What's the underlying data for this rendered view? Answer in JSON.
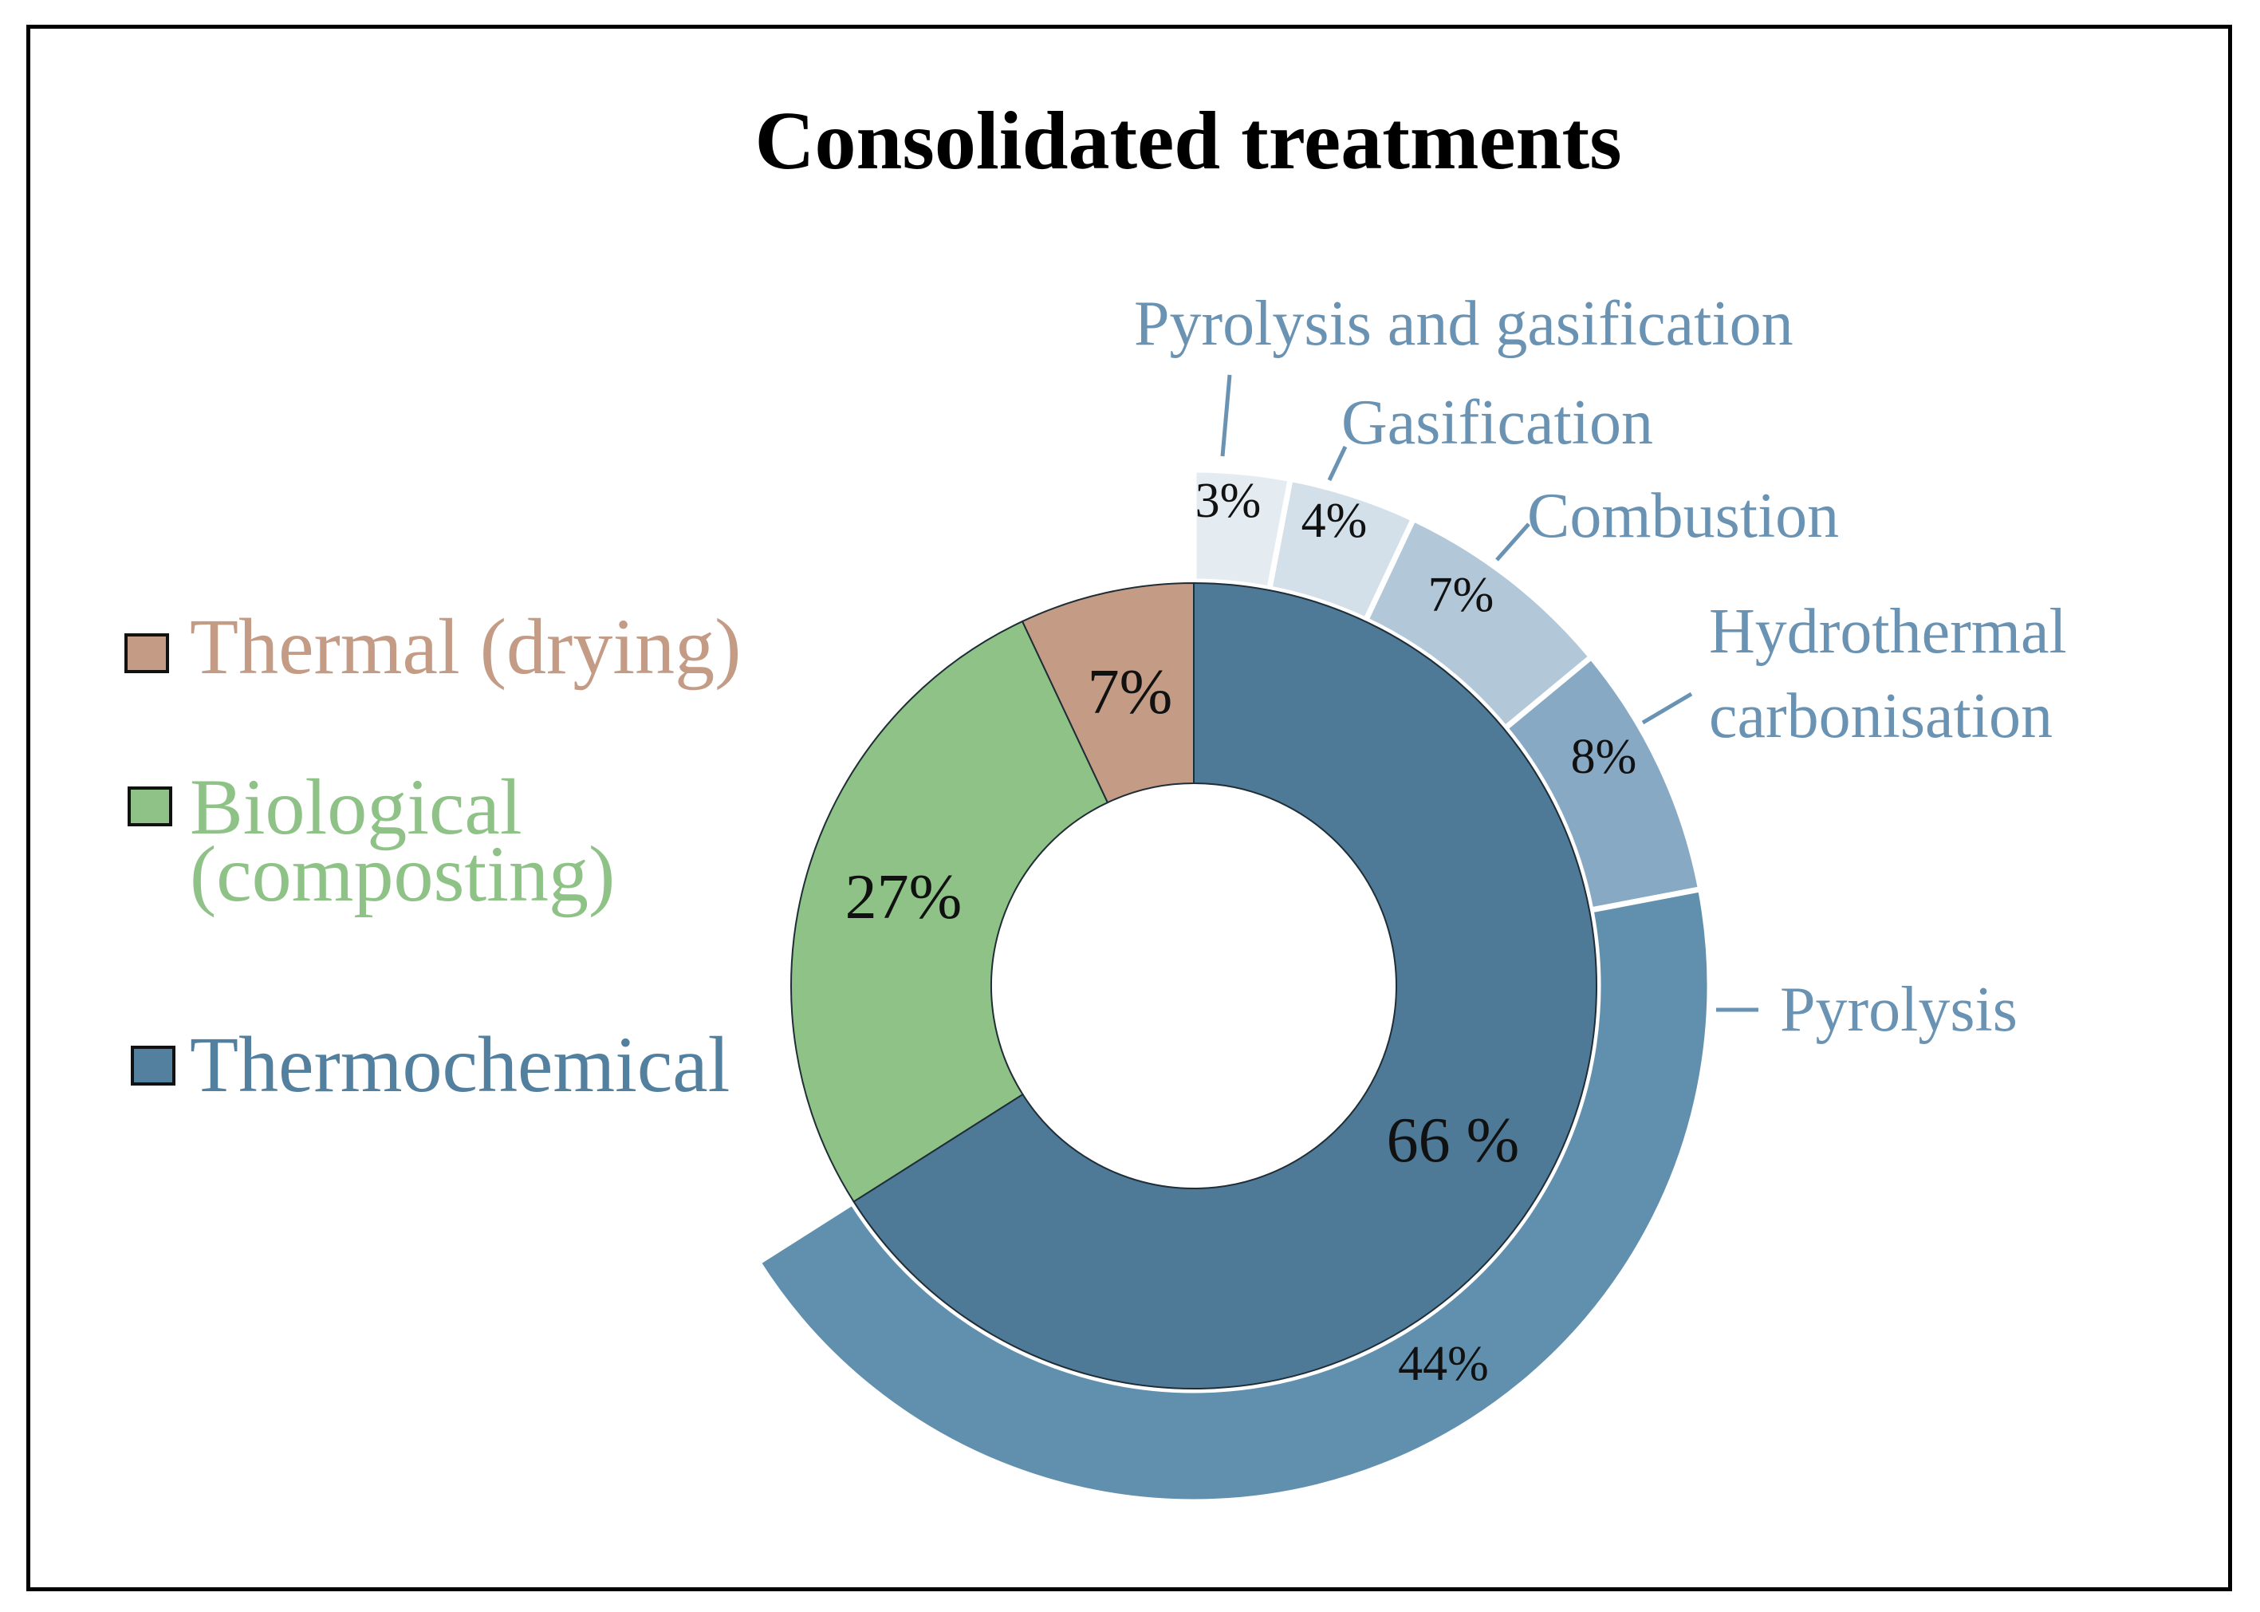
{
  "chart_data": {
    "type": "donut",
    "title": "Consolidated treatments",
    "colors": {
      "thermal": "#c49c86",
      "biological": "#8fc287",
      "thermochemical": "#4e7a97",
      "legend_thermochemical": "#52809e",
      "pyrolysis": "#6090ae",
      "htc": "#88a9c4",
      "combustion": "#b2c7d8",
      "gasification": "#d3dfe9",
      "pyro_gas": "#e4ecf2"
    },
    "legend": [
      {
        "name": "Thermal (drying)",
        "lines": [
          "Thermal (drying)"
        ],
        "color_key": "thermal",
        "text_color": "#c49c86"
      },
      {
        "name": "Biological (composting)",
        "lines": [
          "Biological",
          "(composting)"
        ],
        "color_key": "biological",
        "text_color": "#8fc287"
      },
      {
        "name": "Thermochemical",
        "lines": [
          "Thermochemical"
        ],
        "color_key": "legend_thermochemical",
        "text_color": "#52809e"
      }
    ],
    "inner_ring": [
      {
        "category": "Thermal (drying)",
        "value": 7,
        "label": "7%",
        "color_key": "thermal"
      },
      {
        "category": "Biological (composting)",
        "value": 27,
        "label": "27%",
        "color_key": "biological"
      },
      {
        "category": "Thermochemical",
        "value": 66,
        "label": "66 %",
        "color_key": "thermochemical"
      }
    ],
    "outer_ring": [
      {
        "category": "Pyrolysis and gasification",
        "value": 3,
        "label": "3%",
        "lines": [
          "Pyrolysis and gasification"
        ],
        "color_key": "pyro_gas"
      },
      {
        "category": "Gasification",
        "value": 4,
        "label": "4%",
        "lines": [
          "Gasification"
        ],
        "color_key": "gasification"
      },
      {
        "category": "Combustion",
        "value": 7,
        "label": "7%",
        "lines": [
          "Combustion"
        ],
        "color_key": "combustion"
      },
      {
        "category": "Hydrothermal carbonisation",
        "value": 8,
        "label": "8%",
        "lines": [
          "Hydrothermal",
          "carbonisation"
        ],
        "color_key": "htc"
      },
      {
        "category": "Pyrolysis",
        "value": 44,
        "label": "44%",
        "lines": [
          "Pyrolysis"
        ],
        "color_key": "pyrolysis"
      }
    ],
    "callout_color": "#6a93b3"
  }
}
